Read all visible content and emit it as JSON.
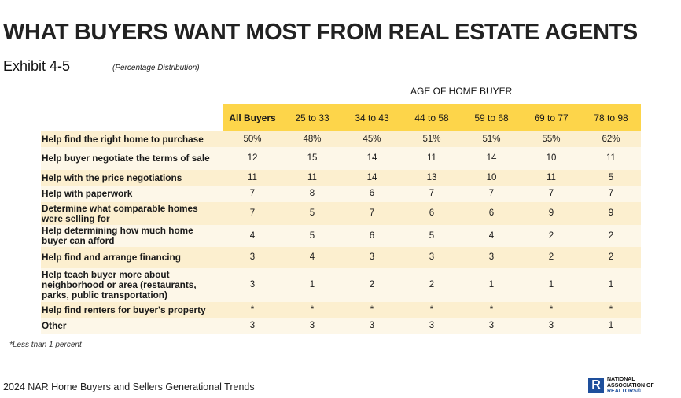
{
  "title": "WHAT BUYERS WANT MOST FROM REAL ESTATE AGENTS",
  "exhibit": "Exhibit 4-5",
  "subtitle": "(Percentage Distribution)",
  "group_header": "AGE OF HOME BUYER",
  "columns": [
    "All Buyers",
    "25 to 33",
    "34 to 43",
    "44 to 58",
    "59 to 68",
    "69 to 77",
    "78 to 98"
  ],
  "rows": [
    {
      "label": "Help find the right home to purchase",
      "values": [
        "50%",
        "48%",
        "45%",
        "51%",
        "51%",
        "55%",
        "62%"
      ]
    },
    {
      "label": "Help buyer negotiate the terms of sale",
      "values": [
        "12",
        "15",
        "14",
        "11",
        "14",
        "10",
        "11"
      ]
    },
    {
      "label": "Help with the price negotiations",
      "values": [
        "11",
        "11",
        "14",
        "13",
        "10",
        "11",
        "5"
      ]
    },
    {
      "label": "Help with paperwork",
      "values": [
        "7",
        "8",
        "6",
        "7",
        "7",
        "7",
        "7"
      ]
    },
    {
      "label": "Determine what comparable homes were selling for",
      "values": [
        "7",
        "5",
        "7",
        "6",
        "6",
        "9",
        "9"
      ]
    },
    {
      "label": "Help determining how much home buyer can afford",
      "values": [
        "4",
        "5",
        "6",
        "5",
        "4",
        "2",
        "2"
      ]
    },
    {
      "label": "Help find and arrange financing",
      "values": [
        "3",
        "4",
        "3",
        "3",
        "3",
        "2",
        "2"
      ]
    },
    {
      "label": "Help teach buyer more about neighborhood or area (restaurants, parks, public transportation)",
      "values": [
        "3",
        "1",
        "2",
        "2",
        "1",
        "1",
        "1"
      ]
    },
    {
      "label": "Help find renters for buyer's property",
      "values": [
        "*",
        "*",
        "*",
        "*",
        "*",
        "*",
        "*"
      ]
    },
    {
      "label": "Other",
      "values": [
        "3",
        "3",
        "3",
        "3",
        "3",
        "3",
        "1"
      ]
    }
  ],
  "footnote": "*Less than 1 percent",
  "source": "2024 NAR Home Buyers and Sellers Generational Trends",
  "logo": {
    "mark": "R",
    "line1": "NATIONAL",
    "line2": "ASSOCIATION OF",
    "line3": "REALTORS®"
  },
  "colors": {
    "header": "#fdd54a",
    "row_dark": "#fcefcf",
    "row_light": "#fdf7e8",
    "logo": "#1e4f9c"
  }
}
